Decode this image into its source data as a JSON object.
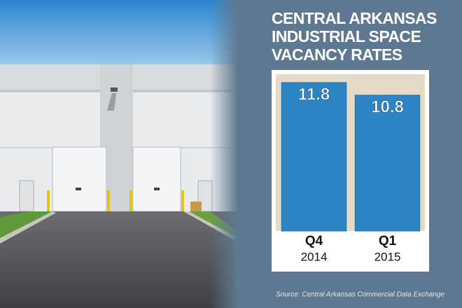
{
  "chart_data": {
    "type": "bar",
    "title": "CENTRAL ARKANSAS INDUSTRIAL SPACE VACANCY RATES",
    "categories": [
      "Q4",
      "Q1"
    ],
    "category_years": [
      "2014",
      "2015"
    ],
    "values": [
      11.8,
      10.8
    ],
    "color": "#2c86c6",
    "source": "Source: Central Arkansas Commercial Data Exchange"
  }
}
